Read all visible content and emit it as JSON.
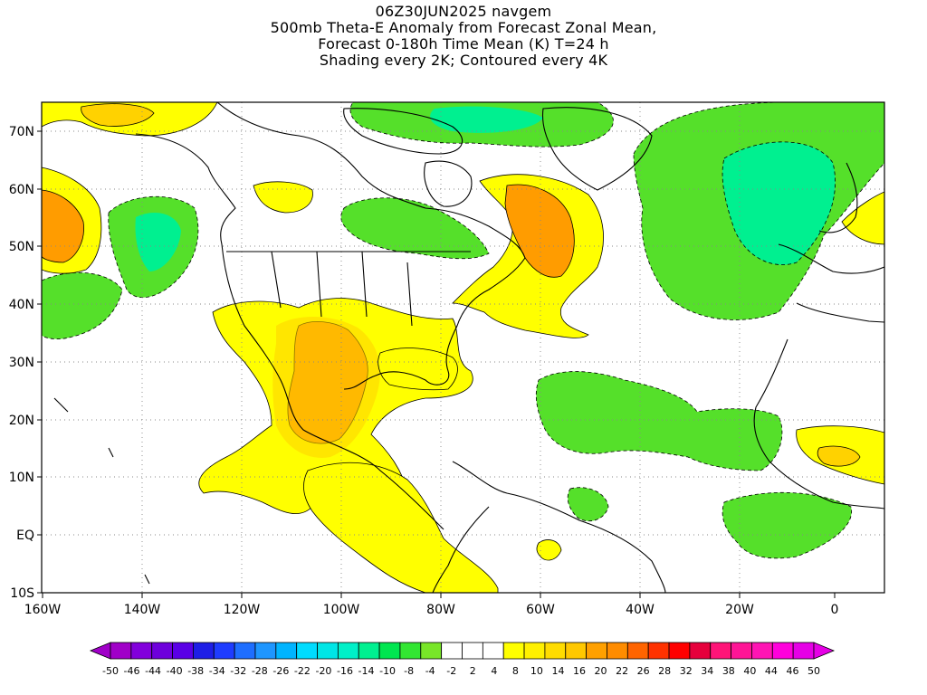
{
  "title": {
    "line1": "06Z30JUN2025 navgem",
    "line2": "500mb Theta-E Anomaly from Forecast Zonal Mean,",
    "line3": "Forecast 0-180h Time Mean (K) T=24 h",
    "line4": "Shading every 2K; Contoured every 4K"
  },
  "map": {
    "lon_range": [
      -160,
      10
    ],
    "lat_range": [
      -10,
      75
    ],
    "y_tick_labels": [
      "70N",
      "60N",
      "50N",
      "40N",
      "30N",
      "20N",
      "10N",
      "EQ",
      "10S"
    ],
    "x_tick_labels": [
      "160W",
      "140W",
      "120W",
      "100W",
      "80W",
      "60W",
      "40W",
      "20W",
      "0"
    ],
    "grid": "dotted"
  },
  "colorbar": {
    "labels": [
      "-50",
      "-46",
      "-44",
      "-40",
      "-38",
      "-34",
      "-32",
      "-28",
      "-26",
      "-22",
      "-20",
      "-16",
      "-14",
      "-10",
      "-8",
      "-4",
      "-2",
      "2",
      "4",
      "8",
      "10",
      "14",
      "16",
      "20",
      "22",
      "26",
      "28",
      "32",
      "34",
      "38",
      "40",
      "44",
      "46",
      "50"
    ],
    "colors": [
      "#a000c8",
      "#8200dc",
      "#6e00dc",
      "#5a00e6",
      "#1e1ee6",
      "#1e3cff",
      "#1e6eff",
      "#1e96ff",
      "#00b4ff",
      "#00dcff",
      "#00e6e6",
      "#00f0c8",
      "#00f090",
      "#00e650",
      "#32e632",
      "#78e628",
      "#ffffff",
      "#ffffff",
      "#ffffff",
      "#ffff00",
      "#fff000",
      "#ffdc00",
      "#ffc800",
      "#ffa000",
      "#ff8c00",
      "#ff6400",
      "#ff3200",
      "#ff0000",
      "#e6003c",
      "#ff1478",
      "#ff1496",
      "#ff14b4",
      "#ff00dc",
      "#e600e6"
    ]
  },
  "colors": {
    "green": "#55e02a",
    "teal": "#00f090",
    "yellow": "#ffff00",
    "gold": "#ffd200",
    "orange": "#ff9c00",
    "land_line": "#000000"
  }
}
